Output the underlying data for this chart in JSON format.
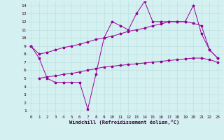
{
  "xlabel": "Windchill (Refroidissement éolien,°C)",
  "background_color": "#d4f0f0",
  "line_color": "#990099",
  "xlim": [
    -0.5,
    23.5
  ],
  "ylim": [
    0.5,
    14.5
  ],
  "xticks": [
    0,
    1,
    2,
    3,
    4,
    5,
    6,
    7,
    8,
    9,
    10,
    11,
    12,
    13,
    14,
    15,
    16,
    17,
    18,
    19,
    20,
    21,
    22,
    23
  ],
  "yticks": [
    1,
    2,
    3,
    4,
    5,
    6,
    7,
    8,
    9,
    10,
    11,
    12,
    13,
    14
  ],
  "line1_x": [
    0,
    1,
    2,
    3,
    4,
    5,
    6,
    7,
    8,
    9,
    10,
    11,
    12,
    13,
    14,
    15,
    16,
    17,
    18,
    19,
    20,
    21,
    22,
    23
  ],
  "line1_y": [
    9.0,
    7.5,
    5.0,
    4.5,
    4.5,
    4.5,
    4.5,
    1.2,
    5.5,
    10.0,
    12.0,
    11.5,
    11.0,
    13.0,
    14.5,
    12.0,
    12.0,
    12.0,
    12.0,
    12.0,
    14.0,
    10.5,
    8.5,
    7.5
  ],
  "line2_x": [
    0,
    1,
    2,
    3,
    4,
    5,
    6,
    7,
    8,
    9,
    10,
    11,
    12,
    13,
    14,
    15,
    16,
    17,
    18,
    19,
    20,
    21,
    22,
    23
  ],
  "line2_y": [
    9.0,
    8.0,
    8.2,
    8.5,
    8.8,
    9.0,
    9.2,
    9.5,
    9.8,
    10.0,
    10.2,
    10.5,
    10.8,
    11.0,
    11.2,
    11.5,
    11.7,
    12.0,
    12.0,
    12.0,
    11.8,
    11.5,
    8.5,
    7.5
  ],
  "line3_x": [
    1,
    2,
    3,
    4,
    5,
    6,
    7,
    8,
    9,
    10,
    11,
    12,
    13,
    14,
    15,
    16,
    17,
    18,
    19,
    20,
    21,
    22,
    23
  ],
  "line3_y": [
    5.0,
    5.2,
    5.3,
    5.5,
    5.6,
    5.8,
    6.0,
    6.2,
    6.4,
    6.5,
    6.6,
    6.7,
    6.8,
    6.9,
    7.0,
    7.1,
    7.2,
    7.3,
    7.4,
    7.5,
    7.5,
    7.3,
    7.0
  ]
}
